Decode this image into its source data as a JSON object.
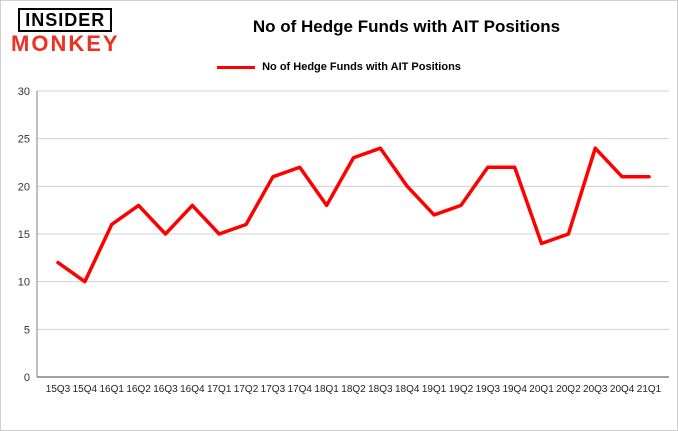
{
  "logo": {
    "line1": "INSIDER",
    "line2": "MONKEY",
    "color": "#ee3124"
  },
  "title": "No of Hedge Funds with AIT Positions",
  "legend": {
    "label": "No of Hedge Funds with AIT Positions",
    "color": "#ff0000"
  },
  "chart_data": {
    "type": "line",
    "title": "No of Hedge Funds with AIT Positions",
    "categories": [
      "15Q3",
      "15Q4",
      "16Q1",
      "16Q2",
      "16Q3",
      "16Q4",
      "17Q1",
      "17Q2",
      "17Q3",
      "17Q4",
      "18Q1",
      "18Q2",
      "18Q3",
      "18Q4",
      "19Q1",
      "19Q2",
      "19Q3",
      "19Q4",
      "20Q1",
      "20Q2",
      "20Q3",
      "20Q4",
      "21Q1"
    ],
    "values": [
      12,
      10,
      16,
      18,
      15,
      18,
      15,
      16,
      21,
      22,
      18,
      23,
      24,
      20,
      17,
      18,
      22,
      22,
      14,
      15,
      24,
      21,
      21
    ],
    "xlabel": "",
    "ylabel": "",
    "ylim": [
      0,
      30
    ],
    "yticks": [
      0,
      5,
      10,
      15,
      20,
      25,
      30
    ],
    "grid": true,
    "legend_position": "top-center",
    "line_color": "#ff0000",
    "grid_color": "#d0d0d0",
    "axis_color": "#808080"
  }
}
